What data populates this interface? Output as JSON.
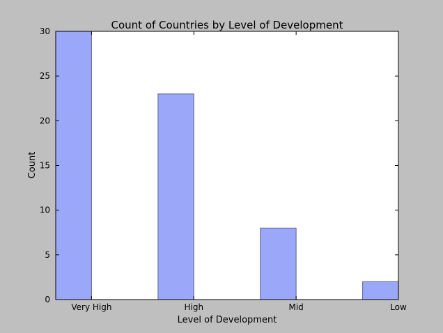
{
  "chart_data": {
    "type": "bar",
    "title": "Count of Countries by Level of Development",
    "xlabel": "Level of Development",
    "ylabel": "Count",
    "categories": [
      "Very High",
      "High",
      "Mid",
      "Low"
    ],
    "values": [
      30,
      23,
      8,
      2
    ],
    "ylim": [
      0,
      30
    ],
    "yticks": [
      0,
      5,
      10,
      15,
      20,
      25,
      30
    ],
    "grid": false,
    "bar_color": "#9ba8f9",
    "bar_edge_color": "#5a5f8f",
    "plot_background": "#ffffff",
    "figure_background": "#bfbfbf"
  }
}
